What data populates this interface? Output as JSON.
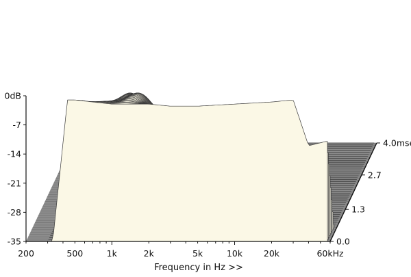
{
  "chart_data": {
    "type": "waterfall-3d",
    "xlabel": "Frequency in Hz >>",
    "x_scale": "log",
    "x_ticks": [
      "200",
      "500",
      "1k",
      "2k",
      "5k",
      "10k",
      "20k",
      "60kHz"
    ],
    "x_tick_values": [
      200,
      500,
      1000,
      2000,
      5000,
      10000,
      20000,
      60000
    ],
    "xlim": [
      200,
      60000
    ],
    "y_ticks": [
      "0dB",
      "-7",
      "-14",
      "-21",
      "-28",
      "-35"
    ],
    "y_tick_values": [
      0,
      -7,
      -14,
      -21,
      -28,
      -35
    ],
    "ylim": [
      -35,
      0
    ],
    "z_ticks": [
      "0.0",
      "1.3",
      "2.7",
      "4.0msec"
    ],
    "z_tick_values": [
      0.0,
      1.3,
      2.7,
      4.0
    ],
    "zlim": [
      0.0,
      4.0
    ],
    "slice_count": 52,
    "floor_level_db": -35,
    "initial_response": [
      {
        "f": 500,
        "db": -1.0
      },
      {
        "f": 700,
        "db": -1.5
      },
      {
        "f": 1000,
        "db": -2.0
      },
      {
        "f": 2000,
        "db": -2.0
      },
      {
        "f": 3000,
        "db": -2.5
      },
      {
        "f": 5000,
        "db": -2.5
      },
      {
        "f": 10000,
        "db": -2.0
      },
      {
        "f": 20000,
        "db": -1.5
      },
      {
        "f": 30000,
        "db": -1.0
      },
      {
        "f": 40000,
        "db": -12.0
      },
      {
        "f": 55000,
        "db": -11.0
      }
    ],
    "colors": {
      "surface": "#fbf8e6",
      "line": "#3a3a3a",
      "floor": "#8c8c8c",
      "floor_line": "#6f6f6f",
      "axis": "#111111"
    }
  }
}
